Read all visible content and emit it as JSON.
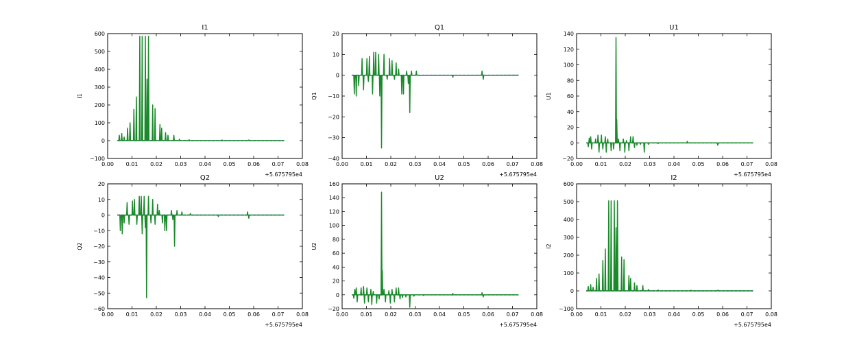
{
  "colors": {
    "signal": "#1a8a2a",
    "baseline": "#1f3bd6",
    "frame": "#000000",
    "background": "#ffffff"
  },
  "chart_data": [
    {
      "type": "line",
      "title": "I1",
      "ylabel": "I1",
      "xlim": [
        0.0,
        0.08
      ],
      "ylim": [
        -100,
        600
      ],
      "xticks": [
        0.0,
        0.01,
        0.02,
        0.03,
        0.04,
        0.05,
        0.06,
        0.07,
        0.08
      ],
      "xtick_labels": [
        "0.00",
        "0.01",
        "0.02",
        "0.03",
        "0.04",
        "0.05",
        "0.06",
        "0.07",
        "0.08"
      ],
      "yticks": [
        -100,
        0,
        100,
        200,
        300,
        400,
        500,
        600
      ],
      "ytick_labels": [
        "−100",
        "0",
        "100",
        "200",
        "300",
        "400",
        "500",
        "600"
      ],
      "x_offset_label": "+5.675795e4",
      "series": [
        {
          "role": "baseline",
          "x": [
            0.004,
            0.0725
          ],
          "y": [
            0,
            0
          ]
        },
        {
          "role": "signal",
          "spikes": [
            [
              0.0048,
              30
            ],
            [
              0.0058,
              40
            ],
            [
              0.0068,
              20
            ],
            [
              0.0082,
              70
            ],
            [
              0.0092,
              100
            ],
            [
              0.0108,
              175
            ],
            [
              0.0118,
              245
            ],
            [
              0.0132,
              585
            ],
            [
              0.0142,
              585
            ],
            [
              0.0155,
              585
            ],
            [
              0.0162,
              345
            ],
            [
              0.0168,
              585
            ],
            [
              0.0185,
              200
            ],
            [
              0.0195,
              180
            ],
            [
              0.0215,
              90
            ],
            [
              0.0222,
              70
            ],
            [
              0.0238,
              45
            ],
            [
              0.0248,
              30
            ],
            [
              0.0272,
              30
            ],
            [
              0.0295,
              8
            ],
            [
              0.0335,
              5
            ],
            [
              0.047,
              4
            ],
            [
              0.058,
              4
            ]
          ]
        }
      ]
    },
    {
      "type": "line",
      "title": "Q1",
      "ylabel": "Q1",
      "xlim": [
        0.0,
        0.08
      ],
      "ylim": [
        -40,
        20
      ],
      "xticks": [
        0.0,
        0.01,
        0.02,
        0.03,
        0.04,
        0.05,
        0.06,
        0.07,
        0.08
      ],
      "xtick_labels": [
        "0.00",
        "0.01",
        "0.02",
        "0.03",
        "0.04",
        "0.05",
        "0.06",
        "0.07",
        "0.08"
      ],
      "yticks": [
        -40,
        -30,
        -20,
        -10,
        0,
        10,
        20
      ],
      "ytick_labels": [
        "−40",
        "−30",
        "−20",
        "−10",
        "0",
        "10",
        "20"
      ],
      "x_offset_label": "+5.675795e4",
      "series": [
        {
          "role": "baseline",
          "x": [
            0.004,
            0.0725
          ],
          "y": [
            0,
            0
          ]
        },
        {
          "role": "signal",
          "spikes": [
            [
              0.005,
              -9
            ],
            [
              0.0058,
              -10
            ],
            [
              0.0068,
              -5
            ],
            [
              0.0082,
              8
            ],
            [
              0.0088,
              -7
            ],
            [
              0.0102,
              8
            ],
            [
              0.0108,
              -3
            ],
            [
              0.0112,
              9
            ],
            [
              0.0125,
              -9
            ],
            [
              0.013,
              11
            ],
            [
              0.0138,
              11
            ],
            [
              0.015,
              10
            ],
            [
              0.0155,
              -10
            ],
            [
              0.0162,
              -35
            ],
            [
              0.0172,
              10
            ],
            [
              0.0185,
              -2
            ],
            [
              0.0195,
              8
            ],
            [
              0.0205,
              7
            ],
            [
              0.0215,
              -2
            ],
            [
              0.0222,
              6
            ],
            [
              0.0232,
              3
            ],
            [
              0.0245,
              -9
            ],
            [
              0.0252,
              -9
            ],
            [
              0.0265,
              2
            ],
            [
              0.0272,
              -4
            ],
            [
              0.0278,
              -18
            ],
            [
              0.0285,
              2
            ],
            [
              0.0305,
              2
            ],
            [
              0.0455,
              -1
            ],
            [
              0.0575,
              2
            ],
            [
              0.058,
              -2
            ]
          ]
        }
      ]
    },
    {
      "type": "line",
      "title": "U1",
      "ylabel": "U1",
      "xlim": [
        0.0,
        0.08
      ],
      "ylim": [
        -20,
        140
      ],
      "xticks": [
        0.0,
        0.01,
        0.02,
        0.03,
        0.04,
        0.05,
        0.06,
        0.07,
        0.08
      ],
      "xtick_labels": [
        "0.00",
        "0.01",
        "0.02",
        "0.03",
        "0.04",
        "0.05",
        "0.06",
        "0.07",
        "0.08"
      ],
      "yticks": [
        -20,
        0,
        20,
        40,
        60,
        80,
        100,
        120,
        140
      ],
      "ytick_labels": [
        "−20",
        "0",
        "20",
        "40",
        "60",
        "80",
        "100",
        "120",
        "140"
      ],
      "x_offset_label": "+5.675795e4",
      "series": [
        {
          "role": "baseline",
          "x": [
            0.004,
            0.0725
          ],
          "y": [
            0,
            0
          ]
        },
        {
          "role": "signal",
          "spikes": [
            [
              0.0048,
              -5
            ],
            [
              0.0052,
              6
            ],
            [
              0.0058,
              8
            ],
            [
              0.0062,
              -8
            ],
            [
              0.0078,
              5
            ],
            [
              0.0088,
              10
            ],
            [
              0.0092,
              -12
            ],
            [
              0.0102,
              10
            ],
            [
              0.0108,
              -8
            ],
            [
              0.0118,
              8
            ],
            [
              0.0122,
              -12
            ],
            [
              0.0128,
              5
            ],
            [
              0.0142,
              -10
            ],
            [
              0.0152,
              -8
            ],
            [
              0.0162,
              135
            ],
            [
              0.0165,
              30
            ],
            [
              0.0172,
              5
            ],
            [
              0.0178,
              -10
            ],
            [
              0.0192,
              5
            ],
            [
              0.0198,
              -12
            ],
            [
              0.0205,
              3
            ],
            [
              0.0215,
              -10
            ],
            [
              0.0222,
              8
            ],
            [
              0.0232,
              8
            ],
            [
              0.0238,
              -6
            ],
            [
              0.0248,
              -3
            ],
            [
              0.0262,
              -2
            ],
            [
              0.0278,
              -12
            ],
            [
              0.0295,
              -2
            ],
            [
              0.0335,
              -1
            ],
            [
              0.0455,
              2
            ],
            [
              0.058,
              -3
            ]
          ]
        }
      ]
    },
    {
      "type": "line",
      "title": "Q2",
      "ylabel": "Q2",
      "xlim": [
        0.0,
        0.08
      ],
      "ylim": [
        -60,
        20
      ],
      "xticks": [
        0.0,
        0.01,
        0.02,
        0.03,
        0.04,
        0.05,
        0.06,
        0.07,
        0.08
      ],
      "xtick_labels": [
        "0.00",
        "0.01",
        "0.02",
        "0.03",
        "0.04",
        "0.05",
        "0.06",
        "0.07",
        "0.08"
      ],
      "yticks": [
        -60,
        -50,
        -40,
        -30,
        -20,
        -10,
        0,
        10,
        20
      ],
      "ytick_labels": [
        "−60",
        "−50",
        "−40",
        "−30",
        "−20",
        "−10",
        "0",
        "10",
        "20"
      ],
      "x_offset_label": "+5.675795e4",
      "series": [
        {
          "role": "baseline",
          "x": [
            0.004,
            0.0725
          ],
          "y": [
            0,
            0
          ]
        },
        {
          "role": "signal",
          "spikes": [
            [
              0.0052,
              -10
            ],
            [
              0.006,
              -12
            ],
            [
              0.0068,
              -5
            ],
            [
              0.008,
              8
            ],
            [
              0.0088,
              -6
            ],
            [
              0.0102,
              9
            ],
            [
              0.011,
              10
            ],
            [
              0.012,
              -6
            ],
            [
              0.013,
              12
            ],
            [
              0.0138,
              12
            ],
            [
              0.0142,
              -12
            ],
            [
              0.015,
              12
            ],
            [
              0.0155,
              -8
            ],
            [
              0.016,
              -53
            ],
            [
              0.0168,
              12
            ],
            [
              0.0178,
              -5
            ],
            [
              0.0185,
              10
            ],
            [
              0.0195,
              -6
            ],
            [
              0.0205,
              7
            ],
            [
              0.0212,
              3
            ],
            [
              0.0225,
              -5
            ],
            [
              0.0235,
              -10
            ],
            [
              0.0242,
              -10
            ],
            [
              0.0262,
              3
            ],
            [
              0.0268,
              -3
            ],
            [
              0.0275,
              -20
            ],
            [
              0.0285,
              3
            ],
            [
              0.0305,
              2
            ],
            [
              0.034,
              1
            ],
            [
              0.0455,
              -1
            ],
            [
              0.0575,
              2
            ],
            [
              0.058,
              -2
            ]
          ]
        }
      ]
    },
    {
      "type": "line",
      "title": "U2",
      "ylabel": "U2",
      "xlim": [
        0.0,
        0.08
      ],
      "ylim": [
        -20,
        160
      ],
      "xticks": [
        0.0,
        0.01,
        0.02,
        0.03,
        0.04,
        0.05,
        0.06,
        0.07,
        0.08
      ],
      "xtick_labels": [
        "0.00",
        "0.01",
        "0.02",
        "0.03",
        "0.04",
        "0.05",
        "0.06",
        "0.07",
        "0.08"
      ],
      "yticks": [
        -20,
        0,
        20,
        40,
        60,
        80,
        100,
        120,
        140,
        160
      ],
      "ytick_labels": [
        "−20",
        "0",
        "20",
        "40",
        "60",
        "80",
        "100",
        "120",
        "140",
        "160"
      ],
      "x_offset_label": "+5.675795e4",
      "series": [
        {
          "role": "baseline",
          "x": [
            0.004,
            0.0725
          ],
          "y": [
            0,
            0
          ]
        },
        {
          "role": "signal",
          "spikes": [
            [
              0.0048,
              -5
            ],
            [
              0.0052,
              8
            ],
            [
              0.0058,
              10
            ],
            [
              0.0062,
              -10
            ],
            [
              0.0078,
              10
            ],
            [
              0.0088,
              12
            ],
            [
              0.0092,
              -12
            ],
            [
              0.0102,
              10
            ],
            [
              0.0108,
              -10
            ],
            [
              0.0118,
              8
            ],
            [
              0.0122,
              -14
            ],
            [
              0.0128,
              5
            ],
            [
              0.0142,
              -12
            ],
            [
              0.0152,
              -6
            ],
            [
              0.0162,
              148
            ],
            [
              0.0165,
              35
            ],
            [
              0.0172,
              8
            ],
            [
              0.0178,
              -10
            ],
            [
              0.0192,
              6
            ],
            [
              0.0198,
              -12
            ],
            [
              0.0205,
              8
            ],
            [
              0.0215,
              -10
            ],
            [
              0.0222,
              10
            ],
            [
              0.0232,
              10
            ],
            [
              0.0238,
              -6
            ],
            [
              0.0248,
              -4
            ],
            [
              0.0262,
              -3
            ],
            [
              0.0278,
              -18
            ],
            [
              0.0295,
              -2
            ],
            [
              0.0335,
              -1
            ],
            [
              0.0455,
              2
            ],
            [
              0.0575,
              3
            ],
            [
              0.058,
              -3
            ]
          ]
        }
      ]
    },
    {
      "type": "line",
      "title": "I2",
      "ylabel": "I2",
      "xlim": [
        0.0,
        0.08
      ],
      "ylim": [
        -100,
        600
      ],
      "xticks": [
        0.0,
        0.01,
        0.02,
        0.03,
        0.04,
        0.05,
        0.06,
        0.07,
        0.08
      ],
      "xtick_labels": [
        "0.00",
        "0.01",
        "0.02",
        "0.03",
        "0.04",
        "0.05",
        "0.06",
        "0.07",
        "0.08"
      ],
      "yticks": [
        -100,
        0,
        100,
        200,
        300,
        400,
        500,
        600
      ],
      "ytick_labels": [
        "−100",
        "0",
        "100",
        "200",
        "300",
        "400",
        "500",
        "600"
      ],
      "x_offset_label": "+5.675795e4",
      "series": [
        {
          "role": "baseline",
          "x": [
            0.004,
            0.0725
          ],
          "y": [
            0,
            0
          ]
        },
        {
          "role": "signal",
          "spikes": [
            [
              0.0048,
              25
            ],
            [
              0.0058,
              35
            ],
            [
              0.0068,
              20
            ],
            [
              0.0082,
              70
            ],
            [
              0.0092,
              95
            ],
            [
              0.0108,
              170
            ],
            [
              0.0118,
              235
            ],
            [
              0.0132,
              505
            ],
            [
              0.0142,
              505
            ],
            [
              0.0155,
              505
            ],
            [
              0.0162,
              355
            ],
            [
              0.0168,
              505
            ],
            [
              0.0185,
              190
            ],
            [
              0.0195,
              175
            ],
            [
              0.0215,
              85
            ],
            [
              0.0222,
              70
            ],
            [
              0.0238,
              45
            ],
            [
              0.0248,
              30
            ],
            [
              0.0272,
              30
            ],
            [
              0.0295,
              8
            ],
            [
              0.0335,
              5
            ],
            [
              0.047,
              4
            ],
            [
              0.058,
              4
            ]
          ]
        }
      ]
    }
  ]
}
